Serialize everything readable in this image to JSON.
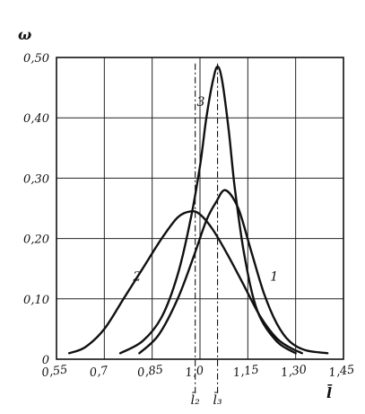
{
  "chart_data": {
    "type": "line",
    "ylabel": "ω",
    "xlabel": "l̄",
    "xlim": [
      0.55,
      1.45
    ],
    "ylim": [
      0,
      0.5
    ],
    "x_ticks": [
      {
        "value": 0.55,
        "label": "0,55"
      },
      {
        "value": 0.7,
        "label": "0,7"
      },
      {
        "value": 0.85,
        "label": "0,85"
      },
      {
        "value": 1.0,
        "label": "1,0"
      },
      {
        "value": 1.15,
        "label": "1,15"
      },
      {
        "value": 1.3,
        "label": "1,30"
      },
      {
        "value": 1.45,
        "label": "1,45"
      }
    ],
    "y_ticks": [
      {
        "value": 0,
        "label": "0"
      },
      {
        "value": 0.1,
        "label": "0,10"
      },
      {
        "value": 0.2,
        "label": "0,20"
      },
      {
        "value": 0.3,
        "label": "0,30"
      },
      {
        "value": 0.4,
        "label": "0,40"
      },
      {
        "value": 0.5,
        "label": "0,50"
      }
    ],
    "grid": true,
    "series": [
      {
        "name": "1",
        "label_at": [
          1.22,
          0.13
        ],
        "x": [
          0.81,
          0.87,
          0.93,
          0.98,
          1.02,
          1.05,
          1.08,
          1.12,
          1.16,
          1.2,
          1.24,
          1.28,
          1.33,
          1.4
        ],
        "y": [
          0.01,
          0.04,
          0.1,
          0.17,
          0.23,
          0.26,
          0.28,
          0.25,
          0.18,
          0.11,
          0.06,
          0.03,
          0.015,
          0.01
        ]
      },
      {
        "name": "2",
        "label_at": [
          0.79,
          0.13
        ],
        "x": [
          0.59,
          0.64,
          0.7,
          0.76,
          0.82,
          0.88,
          0.93,
          0.97,
          1.0,
          1.04,
          1.09,
          1.14,
          1.19,
          1.24,
          1.28,
          1.32
        ],
        "y": [
          0.01,
          0.02,
          0.05,
          0.1,
          0.15,
          0.2,
          0.235,
          0.245,
          0.24,
          0.215,
          0.17,
          0.12,
          0.07,
          0.035,
          0.02,
          0.01
        ]
      },
      {
        "name": "3",
        "label_at": [
          0.99,
          0.42
        ],
        "x": [
          0.75,
          0.82,
          0.88,
          0.93,
          0.97,
          1.0,
          1.02,
          1.04,
          1.055,
          1.07,
          1.09,
          1.11,
          1.14,
          1.18,
          1.24,
          1.3
        ],
        "y": [
          0.01,
          0.03,
          0.07,
          0.14,
          0.23,
          0.32,
          0.4,
          0.46,
          0.485,
          0.46,
          0.38,
          0.28,
          0.17,
          0.08,
          0.03,
          0.01
        ]
      }
    ],
    "markers": [
      {
        "x": 0.985,
        "label": "l̄₂"
      },
      {
        "x": 1.055,
        "label": "l̄₃"
      }
    ]
  }
}
